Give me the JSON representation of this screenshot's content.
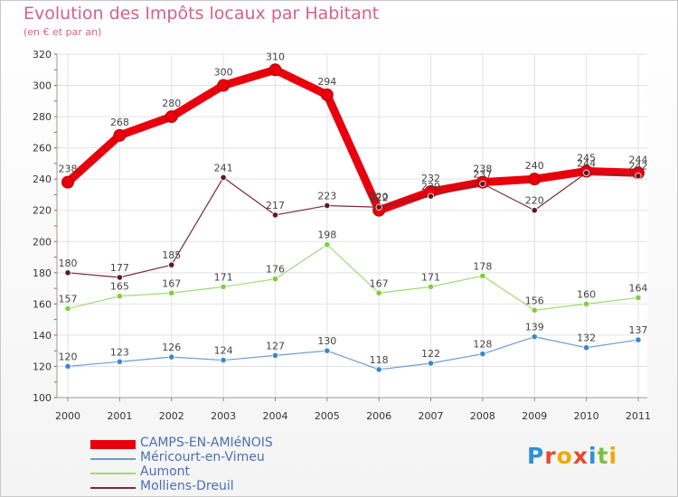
{
  "title": "Evolution des Impôts locaux par Habitant",
  "subtitle": "(en € et par an)",
  "logo": {
    "letters": [
      "P",
      "r",
      "o",
      "x",
      "i",
      "t",
      "i"
    ],
    "colors": [
      "#2f8fd8",
      "#e64a2e",
      "#f2a800",
      "#e64a2e",
      "#2f8fd8",
      "#7cc242",
      "#f2a800"
    ]
  },
  "chart_data": {
    "type": "line",
    "x": [
      "2000",
      "2001",
      "2002",
      "2003",
      "2004",
      "2005",
      "2006",
      "2007",
      "2008",
      "2009",
      "2010",
      "2011"
    ],
    "ylim": [
      100,
      320
    ],
    "yticks": [
      100,
      120,
      140,
      160,
      180,
      200,
      220,
      240,
      260,
      280,
      300,
      320
    ],
    "grid": true,
    "legend_position": "bottom-left",
    "series": [
      {
        "name": "CAMPS-EN-AMIéNOIS",
        "color": "#e8000d",
        "marker": "#e8000d",
        "width": 9,
        "values": [
          238,
          268,
          280,
          300,
          310,
          294,
          220,
          232,
          238,
          240,
          245,
          244
        ]
      },
      {
        "name": "Méricourt-en-Vimeu",
        "color": "#6c9bd2",
        "marker": "#3a87d1",
        "width": 1.2,
        "values": [
          120,
          123,
          126,
          124,
          127,
          130,
          118,
          122,
          128,
          139,
          132,
          137
        ]
      },
      {
        "name": "Aumont",
        "color": "#a3d977",
        "marker": "#7fcf3a",
        "width": 1.2,
        "values": [
          157,
          165,
          167,
          171,
          176,
          198,
          167,
          171,
          178,
          156,
          160,
          164
        ]
      },
      {
        "name": "Molliens-Dreuil",
        "color": "#7a2a33",
        "marker": "#5e1a22",
        "width": 1.2,
        "values": [
          180,
          177,
          185,
          241,
          217,
          223,
          222,
          229,
          237,
          220,
          244,
          242
        ]
      }
    ]
  }
}
